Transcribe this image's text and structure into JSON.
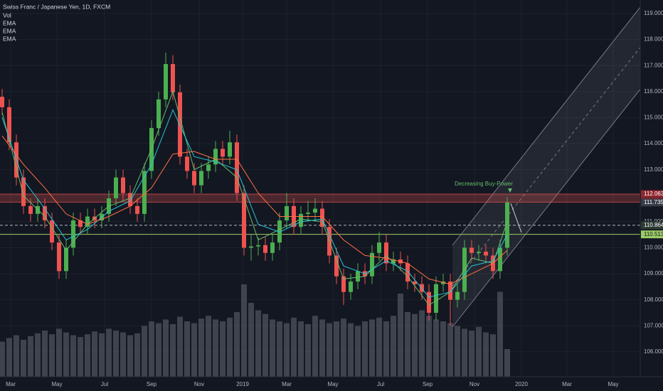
{
  "chart_data": {
    "type": "candlestick",
    "title": "Swiss Franc / Japanese Yen, 1D, FXCM",
    "indicators": [
      "Vol",
      "EMA",
      "EMA",
      "EMA"
    ],
    "annotation": "Decreasing Buy-Power",
    "up_color": "#4caf50",
    "down_color": "#ef5350",
    "volume_color": "#5d606b",
    "grid": true,
    "xlim": [
      -0.3,
      89.7
    ],
    "xticks": [
      {
        "value": 1.2,
        "label": "Mar"
      },
      {
        "value": 7.7,
        "label": "May"
      },
      {
        "value": 14.4,
        "label": "Jul"
      },
      {
        "value": 21,
        "label": "Sep"
      },
      {
        "value": 27.7,
        "label": "Nov"
      },
      {
        "value": 33.8,
        "label": "2019"
      },
      {
        "value": 40,
        "label": "Mar"
      },
      {
        "value": 46.5,
        "label": "May"
      },
      {
        "value": 53.2,
        "label": "Jul"
      },
      {
        "value": 59.8,
        "label": "Sep"
      },
      {
        "value": 66.4,
        "label": "Nov"
      },
      {
        "value": 73,
        "label": "2020"
      },
      {
        "value": 79.4,
        "label": "Mar"
      },
      {
        "value": 85.9,
        "label": "May"
      }
    ],
    "ylim": [
      105.04,
      119.52
    ],
    "yticks": [
      {
        "value": 106,
        "label": "106.000"
      },
      {
        "value": 107,
        "label": "107.000"
      },
      {
        "value": 108,
        "label": "108.000"
      },
      {
        "value": 109,
        "label": "109.000"
      },
      {
        "value": 110,
        "label": "110.000"
      },
      {
        "value": 111,
        "label": "111.000"
      },
      {
        "value": 112,
        "label": "112.000"
      },
      {
        "value": 113,
        "label": "113.000"
      },
      {
        "value": 114,
        "label": "114.000"
      },
      {
        "value": 115,
        "label": "115.000"
      },
      {
        "value": 116,
        "label": "116.000"
      },
      {
        "value": 117,
        "label": "117.000"
      },
      {
        "value": 118,
        "label": "118.000"
      },
      {
        "value": 119,
        "label": "119.000"
      }
    ],
    "candles": [
      [
        115.8,
        116.1,
        115.1,
        115.4
      ],
      [
        115.4,
        115.7,
        113.75,
        114.05
      ],
      [
        114.05,
        114.35,
        112.4,
        112.7
      ],
      [
        112.7,
        113.0,
        111.3,
        111.6
      ],
      [
        111.6,
        111.9,
        111.0,
        111.3
      ],
      [
        111.3,
        111.9,
        111.0,
        111.6
      ],
      [
        111.6,
        111.9,
        110.75,
        111.05
      ],
      [
        111.05,
        111.35,
        109.9,
        110.2
      ],
      [
        110.2,
        110.5,
        108.8,
        109.1
      ],
      [
        109.1,
        110.3,
        108.8,
        110.0
      ],
      [
        110.0,
        111.35,
        109.7,
        111.05
      ],
      [
        111.05,
        111.35,
        110.5,
        110.8
      ],
      [
        110.8,
        111.5,
        110.5,
        111.2
      ],
      [
        111.2,
        111.5,
        110.75,
        111.05
      ],
      [
        111.05,
        111.6,
        110.75,
        111.3
      ],
      [
        111.3,
        112.2,
        111.0,
        111.9
      ],
      [
        111.9,
        113.0,
        111.6,
        112.7
      ],
      [
        112.7,
        113.0,
        111.8,
        112.1
      ],
      [
        112.1,
        112.4,
        111.3,
        111.6
      ],
      [
        111.6,
        111.9,
        111.0,
        111.3
      ],
      [
        111.3,
        113.25,
        111.0,
        112.95
      ],
      [
        112.95,
        114.9,
        112.65,
        114.6
      ],
      [
        114.6,
        116.0,
        114.3,
        115.7
      ],
      [
        115.7,
        117.5,
        115.4,
        117.06
      ],
      [
        117.06,
        117.4,
        115.67,
        115.97
      ],
      [
        115.97,
        116.27,
        113.2,
        113.5
      ],
      [
        113.5,
        113.8,
        112.65,
        112.95
      ],
      [
        112.95,
        113.25,
        112.1,
        112.4
      ],
      [
        112.4,
        113.25,
        112.1,
        112.95
      ],
      [
        112.95,
        113.5,
        112.65,
        113.2
      ],
      [
        113.2,
        114.1,
        112.9,
        113.8
      ],
      [
        113.8,
        114.1,
        113.2,
        113.5
      ],
      [
        113.5,
        114.5,
        113.2,
        114.05
      ],
      [
        114.05,
        114.35,
        111.8,
        112.1
      ],
      [
        112.1,
        112.4,
        109.7,
        110.0
      ],
      [
        110.0,
        110.5,
        109.5,
        110.05
      ],
      [
        110.05,
        110.4,
        109.7,
        110.1
      ],
      [
        110.1,
        110.4,
        109.5,
        109.8
      ],
      [
        109.8,
        110.5,
        109.5,
        110.2
      ],
      [
        110.2,
        111.35,
        109.9,
        111.05
      ],
      [
        111.05,
        112.1,
        110.75,
        111.6
      ],
      [
        111.6,
        111.9,
        110.5,
        110.8
      ],
      [
        110.8,
        111.6,
        110.5,
        111.3
      ],
      [
        111.3,
        111.8,
        111.0,
        111.35
      ],
      [
        111.35,
        111.9,
        111.0,
        111.5
      ],
      [
        111.5,
        111.8,
        110.5,
        110.8
      ],
      [
        110.8,
        111.1,
        109.4,
        109.7
      ],
      [
        109.7,
        110.0,
        108.6,
        108.9
      ],
      [
        108.9,
        109.2,
        107.8,
        108.3
      ],
      [
        108.3,
        109.0,
        108.0,
        108.7
      ],
      [
        108.7,
        109.4,
        108.4,
        109.1
      ],
      [
        109.1,
        109.4,
        108.6,
        108.9
      ],
      [
        108.9,
        110.1,
        108.6,
        109.8
      ],
      [
        109.8,
        110.6,
        109.5,
        110.2
      ],
      [
        110.2,
        110.5,
        109.1,
        109.4
      ],
      [
        109.4,
        109.85,
        109.1,
        109.55
      ],
      [
        109.55,
        109.85,
        109.1,
        109.4
      ],
      [
        109.4,
        109.7,
        108.4,
        108.7
      ],
      [
        108.7,
        109.0,
        108.3,
        108.6
      ],
      [
        108.6,
        108.9,
        108.0,
        108.3
      ],
      [
        108.3,
        108.6,
        107.2,
        107.5
      ],
      [
        107.5,
        108.9,
        107.2,
        108.6
      ],
      [
        108.6,
        109.0,
        108.3,
        108.7
      ],
      [
        108.7,
        109.0,
        107.0,
        108.0
      ],
      [
        108.0,
        108.6,
        107.7,
        108.3
      ],
      [
        108.3,
        110.3,
        108.0,
        110.0
      ],
      [
        110.0,
        110.3,
        109.5,
        109.8
      ],
      [
        109.8,
        110.1,
        109.5,
        109.85
      ],
      [
        109.85,
        110.1,
        109.4,
        109.7
      ],
      [
        109.7,
        110.0,
        108.8,
        109.1
      ],
      [
        109.1,
        110.3,
        108.8,
        110.0
      ],
      [
        110.0,
        111.95,
        109.7,
        111.735
      ]
    ],
    "volume_lim": [
      0,
      100
    ],
    "volume": [
      38,
      42,
      45,
      40,
      44,
      47,
      50,
      46,
      52,
      48,
      45,
      43,
      46,
      49,
      47,
      52,
      50,
      48,
      45,
      47,
      55,
      60,
      58,
      62,
      57,
      65,
      60,
      58,
      63,
      66,
      62,
      60,
      64,
      70,
      100,
      80,
      72,
      68,
      62,
      60,
      58,
      64,
      60,
      57,
      66,
      62,
      58,
      60,
      63,
      58,
      55,
      60,
      62,
      64,
      60,
      66,
      90,
      70,
      68,
      72,
      66,
      62,
      60,
      58,
      55,
      52,
      50,
      54,
      48,
      46,
      92,
      30
    ],
    "ema_x": [
      0,
      3,
      6,
      9,
      12,
      15,
      18,
      21,
      24,
      27,
      30,
      33,
      36,
      39,
      42,
      45,
      48,
      51,
      54,
      57,
      60,
      63,
      66,
      69,
      71
    ],
    "series": [
      {
        "name": "EMA",
        "color": "#66bb6a",
        "values": [
          115.2,
          112.0,
          111.2,
          109.9,
          110.9,
          111.6,
          111.9,
          113.8,
          116.0,
          113.0,
          113.4,
          112.7,
          110.3,
          110.7,
          111.1,
          111.0,
          108.8,
          108.9,
          109.7,
          108.9,
          107.8,
          108.3,
          109.6,
          109.4,
          111.0
        ]
      },
      {
        "name": "EMA",
        "color": "#26c6da",
        "values": [
          115.0,
          112.6,
          111.5,
          110.3,
          110.7,
          111.4,
          111.8,
          113.2,
          115.3,
          113.5,
          113.3,
          113.0,
          110.9,
          110.6,
          111.0,
          111.1,
          109.3,
          109.0,
          109.5,
          109.1,
          108.1,
          108.3,
          109.3,
          109.5,
          110.5
        ]
      },
      {
        "name": "EMA",
        "color": "#ff7043",
        "values": [
          114.3,
          113.2,
          112.3,
          111.3,
          110.9,
          111.2,
          111.6,
          112.3,
          113.6,
          113.7,
          113.4,
          113.4,
          112.1,
          111.2,
          111.2,
          111.2,
          110.3,
          109.7,
          109.6,
          109.4,
          108.8,
          108.6,
          109.0,
          109.4,
          109.9
        ]
      }
    ],
    "levels": [
      {
        "value": 112.063,
        "color": "#8e2730",
        "style": "zone"
      },
      {
        "value": 111.749,
        "color": "#d32f2f",
        "style": "zone"
      },
      {
        "value": 111.735,
        "color": "#363a45",
        "style": "none"
      },
      {
        "value": 110.864,
        "color": "#2e3b34",
        "style": "dashed"
      },
      {
        "value": 110.513,
        "color": "#9ccc65",
        "style": "solid"
      }
    ]
  }
}
